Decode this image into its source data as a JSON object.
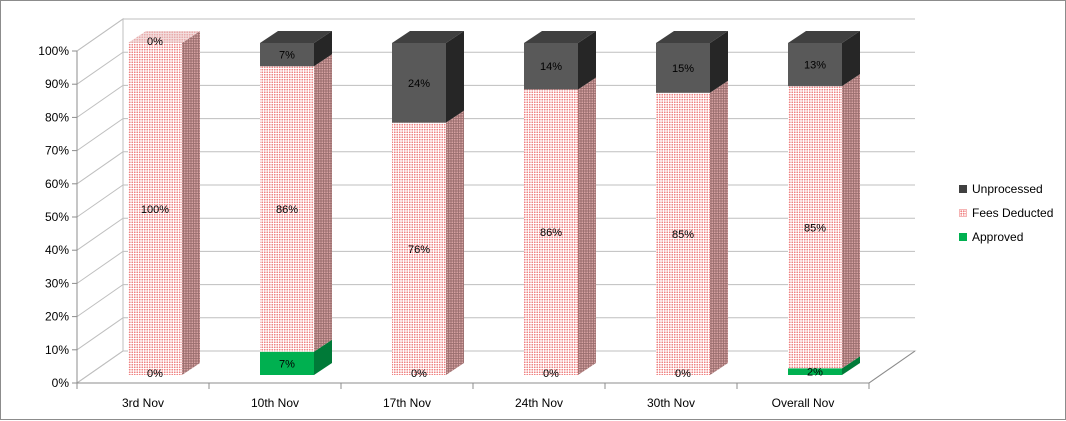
{
  "chart_data": {
    "type": "bar",
    "stacked": true,
    "three_d": true,
    "categories": [
      "3rd Nov",
      "10th Nov",
      "17th Nov",
      "24th Nov",
      "30th Nov",
      "Overall Nov"
    ],
    "series": [
      {
        "name": "Approved",
        "values": [
          0,
          7,
          0,
          0,
          0,
          2
        ],
        "color": "#00b050"
      },
      {
        "name": "Fees Deducted",
        "values": [
          100,
          86,
          76,
          86,
          85,
          85
        ],
        "color": "#f08080"
      },
      {
        "name": "Unprocessed",
        "values": [
          0,
          7,
          24,
          14,
          15,
          13
        ],
        "color": "#404040"
      }
    ],
    "data_labels": {
      "Approved": [
        "0%",
        "7%",
        "0%",
        "0%",
        "0%",
        "2%"
      ],
      "Fees Deducted": [
        "100%",
        "86%",
        "76%",
        "86%",
        "85%",
        "85%"
      ],
      "Unprocessed": [
        "0%",
        "7%",
        "24%",
        "14%",
        "15%",
        "13%"
      ]
    },
    "y_ticks": [
      "0%",
      "10%",
      "20%",
      "30%",
      "40%",
      "50%",
      "60%",
      "70%",
      "80%",
      "90%",
      "100%"
    ],
    "ylim": [
      0,
      100
    ],
    "grid": true,
    "legend_position": "right",
    "legend_order": [
      "Unprocessed",
      "Fees Deducted",
      "Approved"
    ],
    "title": "",
    "xlabel": "",
    "ylabel": ""
  }
}
